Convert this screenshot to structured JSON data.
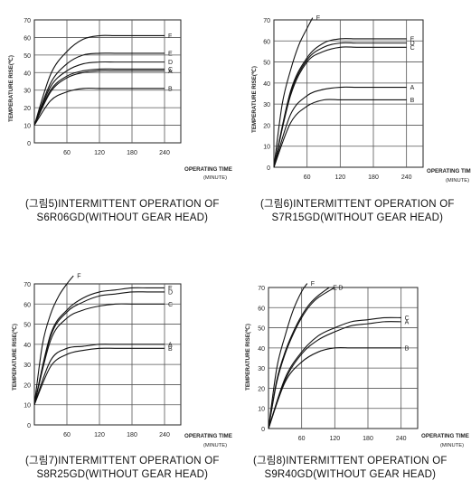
{
  "chart_data": [
    {
      "type": "line",
      "ylabel": "TEMPERATURE RISE(℃)",
      "xlabel": "OPERATING TIME",
      "xunit": "(MINUTE)",
      "x_ticks": [
        60,
        120,
        180,
        240
      ],
      "y_ticks": [
        0,
        10,
        20,
        30,
        40,
        50,
        60,
        70
      ],
      "xlim": [
        0,
        270
      ],
      "ylim": [
        0,
        70
      ],
      "caption_line1": "(그림5)INTERMITTENT OPERATION OF",
      "caption_line2": "S6R06GD(WITHOUT GEAR HEAD)",
      "series": [
        {
          "name": "F",
          "x": [
            0,
            30,
            60,
            90,
            120,
            150,
            180,
            210,
            240
          ],
          "y": [
            10,
            39,
            52,
            59,
            61,
            61,
            61,
            61,
            61
          ]
        },
        {
          "name": "E",
          "x": [
            0,
            30,
            60,
            90,
            120,
            150,
            180,
            210,
            240
          ],
          "y": [
            10,
            34,
            45,
            50,
            51,
            51,
            51,
            51,
            51
          ]
        },
        {
          "name": "D",
          "x": [
            0,
            30,
            60,
            90,
            120,
            150,
            180,
            210,
            240
          ],
          "y": [
            10,
            32,
            41,
            45,
            46,
            46,
            46,
            46,
            46
          ]
        },
        {
          "name": "C",
          "x": [
            0,
            30,
            60,
            90,
            120,
            150,
            180,
            210,
            240
          ],
          "y": [
            10,
            30,
            38,
            41,
            42,
            42,
            42,
            42,
            42
          ]
        },
        {
          "name": "A",
          "x": [
            0,
            30,
            60,
            90,
            120,
            150,
            180,
            210,
            240
          ],
          "y": [
            10,
            29,
            37,
            40,
            41,
            41,
            41,
            41,
            41
          ]
        },
        {
          "name": "B",
          "x": [
            0,
            30,
            60,
            90,
            120,
            150,
            180,
            210,
            240
          ],
          "y": [
            10,
            24,
            29,
            31,
            31,
            31,
            31,
            31,
            31
          ]
        }
      ]
    },
    {
      "type": "line",
      "ylabel": "TEMPERATURE RISE(℃)",
      "xlabel": "OPERATING TIME",
      "xunit": "(MINUTE)",
      "x_ticks": [
        60,
        120,
        180,
        240
      ],
      "y_ticks": [
        0,
        10,
        20,
        30,
        40,
        50,
        60,
        70
      ],
      "xlim": [
        0,
        270
      ],
      "ylim": [
        0,
        70
      ],
      "caption_line1": "(그림6)INTERMITTENT OPERATION OF",
      "caption_line2": "S7R15GD(WITHOUT GEAR HEAD)",
      "series": [
        {
          "name": "F",
          "x": [
            0,
            15,
            30,
            45,
            60,
            70
          ],
          "y": [
            0,
            30,
            46,
            58,
            66,
            71
          ]
        },
        {
          "name": "E",
          "x": [
            0,
            30,
            60,
            90,
            120,
            150,
            180,
            210,
            240
          ],
          "y": [
            0,
            36,
            52,
            59,
            61,
            61,
            61,
            61,
            61
          ]
        },
        {
          "name": "D",
          "x": [
            0,
            30,
            60,
            90,
            120,
            150,
            180,
            210,
            240
          ],
          "y": [
            0,
            35,
            51,
            57,
            59,
            59,
            59,
            59,
            59
          ]
        },
        {
          "name": "C",
          "x": [
            0,
            30,
            60,
            90,
            120,
            150,
            180,
            210,
            240
          ],
          "y": [
            0,
            34,
            50,
            55,
            57,
            57,
            57,
            57,
            57
          ]
        },
        {
          "name": "A",
          "x": [
            0,
            30,
            60,
            90,
            120,
            150,
            180,
            210,
            240
          ],
          "y": [
            0,
            25,
            34,
            37,
            38,
            38,
            38,
            38,
            38
          ]
        },
        {
          "name": "B",
          "x": [
            0,
            30,
            60,
            90,
            120,
            150,
            180,
            210,
            240
          ],
          "y": [
            0,
            21,
            29,
            32,
            32,
            32,
            32,
            32,
            32
          ]
        }
      ]
    },
    {
      "type": "line",
      "ylabel": "TEMPERATURE RISE(℃)",
      "xlabel": "OPERATING TIME",
      "xunit": "(MINUTE)",
      "x_ticks": [
        60,
        120,
        180,
        240
      ],
      "y_ticks": [
        0,
        10,
        20,
        30,
        40,
        50,
        60,
        70
      ],
      "xlim": [
        0,
        270
      ],
      "ylim": [
        0,
        70
      ],
      "caption_line1": "(그림7)INTERMITTENT OPERATION OF",
      "caption_line2": "S8R25GD(WITHOUT GEAR HEAD)",
      "series": [
        {
          "name": "F",
          "x": [
            0,
            15,
            30,
            45,
            60,
            72
          ],
          "y": [
            10,
            40,
            55,
            64,
            70,
            74
          ]
        },
        {
          "name": "E",
          "x": [
            0,
            30,
            60,
            90,
            120,
            150,
            180,
            210,
            240
          ],
          "y": [
            10,
            45,
            57,
            63,
            66,
            67,
            68,
            68,
            68
          ]
        },
        {
          "name": "D",
          "x": [
            0,
            30,
            60,
            90,
            120,
            150,
            180,
            210,
            240
          ],
          "y": [
            10,
            44,
            56,
            61,
            64,
            65,
            66,
            66,
            66
          ]
        },
        {
          "name": "C",
          "x": [
            0,
            30,
            60,
            90,
            120,
            150,
            180,
            210,
            240
          ],
          "y": [
            10,
            42,
            53,
            57,
            59,
            60,
            60,
            60,
            60
          ]
        },
        {
          "name": "A",
          "x": [
            0,
            30,
            60,
            90,
            120,
            150,
            180,
            210,
            240
          ],
          "y": [
            10,
            32,
            38,
            39,
            40,
            40,
            40,
            40,
            40
          ]
        },
        {
          "name": "B",
          "x": [
            0,
            30,
            60,
            90,
            120,
            150,
            180,
            210,
            240
          ],
          "y": [
            10,
            29,
            35,
            37,
            38,
            38,
            38,
            38,
            38
          ]
        }
      ]
    },
    {
      "type": "line",
      "ylabel": "TEMPERATURE RISE(℃)",
      "xlabel": "OPERATING TIME",
      "xunit": "(MINUTE)",
      "x_ticks": [
        60,
        120,
        180,
        240
      ],
      "y_ticks": [
        0,
        10,
        20,
        30,
        40,
        50,
        60,
        70
      ],
      "xlim": [
        0,
        270
      ],
      "ylim": [
        0,
        70
      ],
      "caption_line1": "(그림8)INTERMITTENT OPERATION OF",
      "caption_line2": "S9R40GD(WITHOUT GEAR HEAD)",
      "series": [
        {
          "name": "F",
          "x": [
            0,
            15,
            30,
            45,
            60,
            70
          ],
          "y": [
            0,
            30,
            46,
            59,
            68,
            72
          ]
        },
        {
          "name": "E",
          "x": [
            0,
            15,
            30,
            45,
            60,
            75,
            90,
            110
          ],
          "y": [
            0,
            24,
            38,
            48,
            56,
            62,
            66,
            70
          ]
        },
        {
          "name": "D",
          "x": [
            0,
            15,
            30,
            45,
            60,
            75,
            90,
            120
          ],
          "y": [
            0,
            23,
            37,
            47,
            55,
            61,
            65,
            70
          ]
        },
        {
          "name": "C",
          "x": [
            0,
            30,
            60,
            90,
            120,
            150,
            180,
            210,
            240
          ],
          "y": [
            0,
            25,
            38,
            46,
            50,
            53,
            54,
            55,
            55
          ]
        },
        {
          "name": "A",
          "x": [
            0,
            30,
            60,
            90,
            120,
            150,
            180,
            210,
            240
          ],
          "y": [
            0,
            24,
            37,
            44,
            48,
            51,
            52,
            53,
            53
          ]
        },
        {
          "name": "B",
          "x": [
            0,
            30,
            60,
            90,
            120,
            150,
            180,
            210,
            240
          ],
          "y": [
            0,
            23,
            33,
            38,
            40,
            40,
            40,
            40,
            40
          ]
        }
      ]
    }
  ]
}
